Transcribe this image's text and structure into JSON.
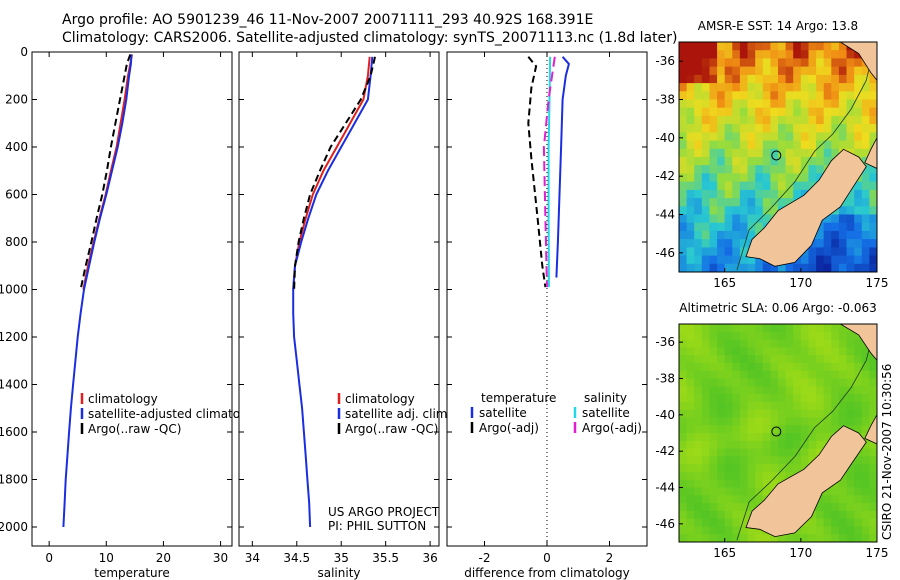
{
  "title": {
    "line1": "Argo profile: AO 5901239_46 11-Nov-2007 20071111_293 40.92S 168.391E",
    "line2": "Climatology: CARS2006. Satellite-adjusted climatology: synTS_20071113.nc (1.8d later)"
  },
  "side_stamp": "CSIRO 21-Nov-2007 10:30:56",
  "colors": {
    "climatology": "#e02020",
    "satellite": "#1a2ee0",
    "argo": "#000000",
    "sal_satellite": "#22d8e8",
    "sal_argo": "#e020d0",
    "land": "#f2c49a"
  },
  "chart_data": [
    {
      "id": "temperature",
      "type": "line",
      "xlabel": "temperature",
      "xlim": [
        -3,
        32
      ],
      "xticks": [
        0,
        10,
        20,
        30
      ],
      "ylim": [
        2080,
        0
      ],
      "yticks": [
        0,
        200,
        400,
        600,
        800,
        1000,
        1200,
        1400,
        1600,
        1800,
        2000
      ],
      "legend": [
        "climatology",
        "satellite-adjusted climatology",
        "Argo(..raw -QC)"
      ],
      "series": [
        {
          "name": "climatology",
          "color": "#e02020",
          "dash": "",
          "points": [
            [
              14.5,
              10
            ],
            [
              14.2,
              50
            ],
            [
              13.8,
              100
            ],
            [
              13.2,
              200
            ],
            [
              12.5,
              300
            ],
            [
              11.8,
              400
            ],
            [
              10.8,
              500
            ],
            [
              9.9,
              600
            ],
            [
              8.8,
              700
            ],
            [
              7.8,
              800
            ],
            [
              6.8,
              900
            ],
            [
              6.0,
              1000
            ]
          ]
        },
        {
          "name": "satellite-adjusted climatology",
          "color": "#1a2ee0",
          "dash": "",
          "points": [
            [
              14.4,
              10
            ],
            [
              14.3,
              50
            ],
            [
              14.0,
              100
            ],
            [
              13.5,
              200
            ],
            [
              12.8,
              300
            ],
            [
              12.0,
              400
            ],
            [
              11.0,
              500
            ],
            [
              10.0,
              600
            ],
            [
              8.9,
              700
            ],
            [
              7.9,
              800
            ],
            [
              7.0,
              900
            ],
            [
              6.1,
              1000
            ],
            [
              5.5,
              1100
            ],
            [
              5.0,
              1200
            ],
            [
              4.6,
              1300
            ],
            [
              4.2,
              1400
            ],
            [
              3.8,
              1500
            ],
            [
              3.5,
              1600
            ],
            [
              3.2,
              1700
            ],
            [
              2.9,
              1800
            ],
            [
              2.7,
              1900
            ],
            [
              2.5,
              2000
            ]
          ]
        },
        {
          "name": "Argo(..raw -QC)",
          "color": "#000000",
          "dash": "7,4",
          "points": [
            [
              14.2,
              10
            ],
            [
              13.6,
              50
            ],
            [
              13.2,
              100
            ],
            [
              12.4,
              200
            ],
            [
              11.6,
              300
            ],
            [
              10.8,
              400
            ],
            [
              10.1,
              500
            ],
            [
              9.3,
              600
            ],
            [
              8.3,
              700
            ],
            [
              7.4,
              800
            ],
            [
              6.4,
              900
            ],
            [
              5.5,
              1000
            ]
          ]
        }
      ]
    },
    {
      "id": "salinity",
      "type": "line",
      "xlabel": "salinity",
      "xlim": [
        33.85,
        36.1
      ],
      "xticks": [
        34,
        34.5,
        35,
        35.5,
        36
      ],
      "ylim": [
        2080,
        0
      ],
      "yticks": [
        0,
        200,
        400,
        600,
        800,
        1000,
        1200,
        1400,
        1600,
        1800,
        2000
      ],
      "legend": [
        "climatology",
        "satellite adj. clim.",
        "Argo(..raw -QC)"
      ],
      "annotation": [
        "US ARGO PROJECT",
        "PI: PHIL SUTTON"
      ],
      "series": [
        {
          "name": "climatology",
          "color": "#e02020",
          "dash": "",
          "points": [
            [
              35.32,
              20
            ],
            [
              35.3,
              100
            ],
            [
              35.25,
              200
            ],
            [
              35.1,
              300
            ],
            [
              34.95,
              400
            ],
            [
              34.8,
              500
            ],
            [
              34.68,
              600
            ],
            [
              34.6,
              700
            ],
            [
              34.53,
              800
            ],
            [
              34.48,
              900
            ],
            [
              34.46,
              1000
            ]
          ]
        },
        {
          "name": "satellite adj. clim.",
          "color": "#1a2ee0",
          "dash": "",
          "points": [
            [
              35.35,
              20
            ],
            [
              35.33,
              100
            ],
            [
              35.3,
              200
            ],
            [
              35.15,
              300
            ],
            [
              35.0,
              400
            ],
            [
              34.85,
              500
            ],
            [
              34.72,
              600
            ],
            [
              34.63,
              700
            ],
            [
              34.55,
              800
            ],
            [
              34.48,
              900
            ],
            [
              34.46,
              1000
            ],
            [
              34.46,
              1100
            ],
            [
              34.47,
              1200
            ],
            [
              34.5,
              1300
            ],
            [
              34.53,
              1400
            ],
            [
              34.56,
              1500
            ],
            [
              34.58,
              1600
            ],
            [
              34.6,
              1700
            ],
            [
              34.62,
              1800
            ],
            [
              34.64,
              1900
            ],
            [
              34.65,
              2000
            ]
          ]
        },
        {
          "name": "Argo(..raw -QC)",
          "color": "#000000",
          "dash": "7,4",
          "points": [
            [
              35.38,
              20
            ],
            [
              35.33,
              100
            ],
            [
              35.22,
              200
            ],
            [
              35.05,
              300
            ],
            [
              34.88,
              400
            ],
            [
              34.76,
              500
            ],
            [
              34.65,
              600
            ],
            [
              34.58,
              700
            ],
            [
              34.52,
              800
            ],
            [
              34.48,
              900
            ],
            [
              34.47,
              1000
            ]
          ]
        }
      ]
    },
    {
      "id": "difference",
      "type": "line",
      "xlabel": "difference from climatology",
      "xlim": [
        -3.2,
        3.2
      ],
      "xticks": [
        -2,
        0,
        2
      ],
      "ylim": [
        2080,
        0
      ],
      "yticks": [
        0,
        200,
        400,
        600,
        800,
        1000,
        1200,
        1400,
        1600,
        1800,
        2000
      ],
      "legend_headers": [
        "temperature",
        "salinity"
      ],
      "legend": [
        "satellite",
        "Argo(-adj)",
        "satellite",
        "Argo(-adj)"
      ],
      "series": [
        {
          "name": "temperature satellite",
          "color": "#1a2ee0",
          "dash": "",
          "points": [
            [
              0.5,
              20
            ],
            [
              0.7,
              50
            ],
            [
              0.6,
              100
            ],
            [
              0.5,
              200
            ],
            [
              0.45,
              400
            ],
            [
              0.4,
              600
            ],
            [
              0.35,
              800
            ],
            [
              0.3,
              950
            ]
          ]
        },
        {
          "name": "temperature Argo(-adj)",
          "color": "#000000",
          "dash": "7,4",
          "points": [
            [
              -0.6,
              20
            ],
            [
              -0.35,
              60
            ],
            [
              -0.5,
              150
            ],
            [
              -0.6,
              300
            ],
            [
              -0.5,
              450
            ],
            [
              -0.3,
              700
            ],
            [
              -0.15,
              900
            ],
            [
              -0.05,
              990
            ]
          ]
        },
        {
          "name": "salinity satellite",
          "color": "#22d8e8",
          "dash": "",
          "points": [
            [
              0.1,
              20
            ],
            [
              0.08,
              200
            ],
            [
              0.05,
              400
            ],
            [
              0.05,
              700
            ],
            [
              0.06,
              990
            ]
          ]
        },
        {
          "name": "salinity Argo(-adj)",
          "color": "#e020d0",
          "dash": "10,5",
          "points": [
            [
              0.25,
              20
            ],
            [
              0.05,
              200
            ],
            [
              -0.1,
              400
            ],
            [
              -0.05,
              700
            ],
            [
              0.0,
              990
            ]
          ]
        }
      ]
    },
    {
      "id": "sst-map",
      "type": "heatmap",
      "title": "AMSR-E SST: 14 Argo: 13.8",
      "xticks": [
        165,
        170,
        175
      ],
      "yticks": [
        -36,
        -38,
        -40,
        -42,
        -44,
        -46
      ],
      "xlim": [
        162,
        175
      ],
      "ylim": [
        -47,
        -35
      ],
      "marker": [
        168.39,
        -40.92
      ]
    },
    {
      "id": "sla-map",
      "type": "heatmap",
      "title": "Altimetric SLA: 0.06 Argo: -0.063",
      "xticks": [
        165,
        170,
        175
      ],
      "yticks": [
        -36,
        -38,
        -40,
        -42,
        -44,
        -46
      ],
      "xlim": [
        162,
        175
      ],
      "ylim": [
        -47,
        -35
      ],
      "marker": [
        168.39,
        -40.92
      ]
    }
  ]
}
